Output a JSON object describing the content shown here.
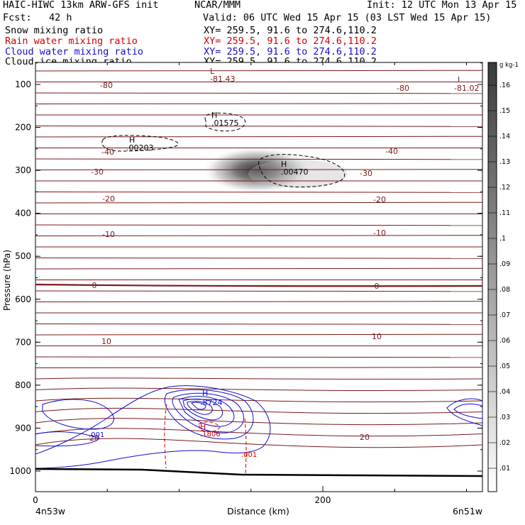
{
  "header": {
    "model": "HAIC-HIWC 13km ARW-GFS init",
    "center": "NCAR/MMM",
    "init": "Init: 12 UTC Mon 13 Apr 15",
    "fcst": "Fcst:   42 h",
    "valid": "Valid: 06 UTC Wed 15 Apr 15 (03 LST Wed 15 Apr 15)",
    "fields": [
      {
        "label": "Snow mixing ratio",
        "xy": "XY= 259.5, 91.6 to 274.6,110.2",
        "color": "#000000"
      },
      {
        "label": "Rain water mixing ratio",
        "xy": "XY= 259.5, 91.6 to 274.6,110.2",
        "color": "#d40000"
      },
      {
        "label": "Cloud water mixing ratio",
        "xy": "XY= 259.5, 91.6 to 274.6,110.2",
        "color": "#1010d0"
      },
      {
        "label": "Cloud ice mixing ratio",
        "xy": "XY= 259.5, 91.6 to 274.6,110.2",
        "color": "#000000"
      }
    ]
  },
  "chart_data": {
    "type": "cross-section contour",
    "xlabel": "Distance (km)",
    "ylabel": "Pressure (hPa)",
    "x_ticks": [
      "0",
      "200"
    ],
    "y_ticks": [
      "100",
      "200",
      "300",
      "400",
      "500",
      "600",
      "700",
      "800",
      "900",
      "1000"
    ],
    "left_endpoint": "4n53w",
    "right_endpoint": "6n51w",
    "temperature_labels": [
      "-80",
      "-80",
      "-40",
      "-40",
      "-30",
      "-30",
      "-20",
      "-20",
      "-10",
      "-10",
      "0",
      "0",
      "10",
      "10",
      "20",
      "20"
    ],
    "extrema": [
      {
        "type": "L",
        "value": "-81.43"
      },
      {
        "type": "L",
        "value": "-81.02"
      },
      {
        "type": "H",
        "value": ".01575"
      },
      {
        "type": "H",
        "value": ".00203"
      },
      {
        "type": "H",
        "value": ".00470"
      },
      {
        "type": "H",
        "value": ".8724"
      },
      {
        "type": "H",
        "value": ".1806"
      }
    ],
    "contour_labels": [
      ".001",
      ".001"
    ],
    "colorbar": {
      "unit": "g kg-1",
      "ticks": [
        ".01",
        ".02",
        ".03",
        ".04",
        ".05",
        ".06",
        ".07",
        ".08",
        ".09",
        ".1",
        ".11",
        ".12",
        ".13",
        ".14",
        ".15",
        ".16"
      ]
    },
    "colors": {
      "temperature": "#7a1a1a",
      "cloud_water": "#1010d0",
      "rain": "#d40000",
      "terrain": "#000000"
    }
  }
}
